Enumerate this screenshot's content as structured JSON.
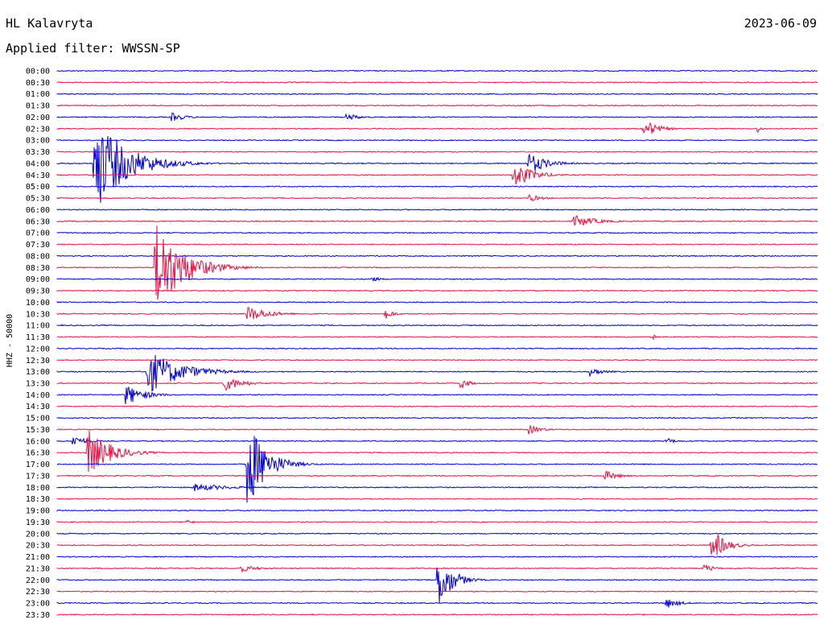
{
  "header": {
    "station": "HL Kalavryta",
    "date": "2023-06-09",
    "filter": "Applied filter: WWSSN-SP"
  },
  "chart_data": {
    "type": "line",
    "title": "HL Kalavryta",
    "ylabel": "HHZ - 50000",
    "colors": {
      "even": "#0000dd",
      "odd": "#ee1144"
    },
    "rows": [
      "00:00",
      "00:30",
      "01:00",
      "01:30",
      "02:00",
      "02:30",
      "03:00",
      "03:30",
      "04:00",
      "04:30",
      "05:00",
      "05:30",
      "06:00",
      "06:30",
      "07:00",
      "07:30",
      "08:00",
      "08:30",
      "09:00",
      "09:30",
      "10:00",
      "10:30",
      "11:00",
      "11:30",
      "12:00",
      "12:30",
      "13:00",
      "13:30",
      "14:00",
      "14:30",
      "15:00",
      "15:30",
      "16:00",
      "16:30",
      "17:00",
      "17:30",
      "18:00",
      "18:30",
      "19:00",
      "19:30",
      "20:00",
      "20:30",
      "21:00",
      "21:30",
      "22:00",
      "22:30",
      "23:00",
      "23:30"
    ],
    "events": [
      {
        "row": 4,
        "t": 0.15,
        "amp": 6,
        "dur": 0.03
      },
      {
        "row": 4,
        "t": 0.38,
        "amp": 5,
        "dur": 0.03
      },
      {
        "row": 5,
        "t": 0.77,
        "amp": 14,
        "dur": 0.03
      },
      {
        "row": 5,
        "t": 0.92,
        "amp": 6,
        "dur": 0.01
      },
      {
        "row": 8,
        "t": 0.05,
        "amp": 60,
        "dur": 0.07
      },
      {
        "row": 8,
        "t": 0.62,
        "amp": 14,
        "dur": 0.04
      },
      {
        "row": 9,
        "t": 0.6,
        "amp": 18,
        "dur": 0.04
      },
      {
        "row": 11,
        "t": 0.62,
        "amp": 5,
        "dur": 0.03
      },
      {
        "row": 13,
        "t": 0.68,
        "amp": 8,
        "dur": 0.05
      },
      {
        "row": 17,
        "t": 0.13,
        "amp": 60,
        "dur": 0.06
      },
      {
        "row": 18,
        "t": 0.41,
        "amp": 5,
        "dur": 0.02
      },
      {
        "row": 21,
        "t": 0.25,
        "amp": 10,
        "dur": 0.05
      },
      {
        "row": 21,
        "t": 0.43,
        "amp": 8,
        "dur": 0.02
      },
      {
        "row": 23,
        "t": 0.78,
        "amp": 7,
        "dur": 0.01
      },
      {
        "row": 26,
        "t": 0.12,
        "amp": 28,
        "dur": 0.07
      },
      {
        "row": 26,
        "t": 0.7,
        "amp": 6,
        "dur": 0.03
      },
      {
        "row": 27,
        "t": 0.22,
        "amp": 10,
        "dur": 0.04
      },
      {
        "row": 27,
        "t": 0.53,
        "amp": 8,
        "dur": 0.02
      },
      {
        "row": 28,
        "t": 0.09,
        "amp": 14,
        "dur": 0.04
      },
      {
        "row": 31,
        "t": 0.62,
        "amp": 6,
        "dur": 0.03
      },
      {
        "row": 32,
        "t": 0.02,
        "amp": 8,
        "dur": 0.03
      },
      {
        "row": 32,
        "t": 0.8,
        "amp": 5,
        "dur": 0.02
      },
      {
        "row": 33,
        "t": 0.04,
        "amp": 30,
        "dur": 0.05
      },
      {
        "row": 34,
        "t": 0.25,
        "amp": 60,
        "dur": 0.04
      },
      {
        "row": 35,
        "t": 0.72,
        "amp": 7,
        "dur": 0.03
      },
      {
        "row": 36,
        "t": 0.18,
        "amp": 5,
        "dur": 0.08
      },
      {
        "row": 39,
        "t": 0.17,
        "amp": 6,
        "dur": 0.01
      },
      {
        "row": 41,
        "t": 0.86,
        "amp": 22,
        "dur": 0.03
      },
      {
        "row": 43,
        "t": 0.24,
        "amp": 5,
        "dur": 0.04
      },
      {
        "row": 43,
        "t": 0.85,
        "amp": 7,
        "dur": 0.02
      },
      {
        "row": 44,
        "t": 0.5,
        "amp": 40,
        "dur": 0.03
      },
      {
        "row": 46,
        "t": 0.8,
        "amp": 7,
        "dur": 0.03
      }
    ]
  }
}
